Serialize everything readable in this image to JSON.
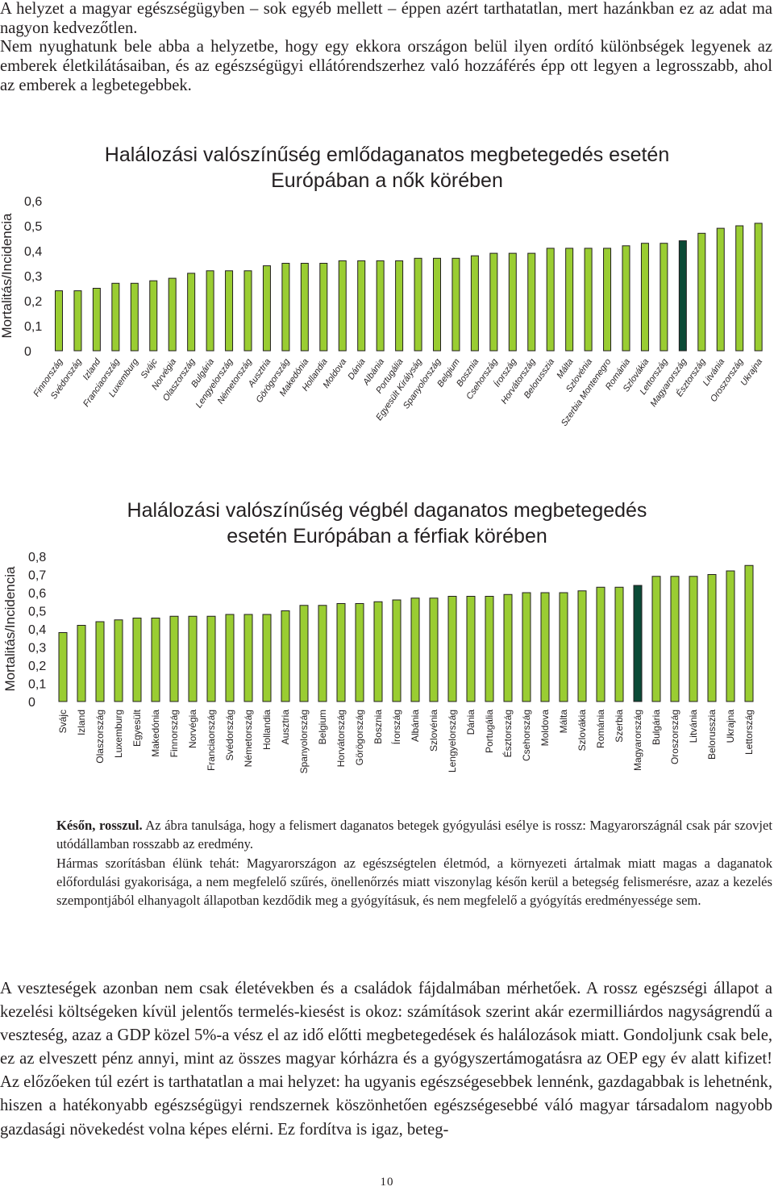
{
  "intro": {
    "p1": "A helyzet a magyar egészségügyben – sok egyéb mellett – éppen azért tarthatatlan, mert hazánkban ez az adat ma nagyon kedvezőtlen.",
    "p2": "Nem nyughatunk bele abba a helyzetbe, hogy egy ekkora országon belül ilyen ordító különbségek legyenek az emberek életkilátásaiban, és az egészségügyi ellátórendszerhez való hozzáférés épp ott legyen a legrosszabb, ahol az emberek a legbetegebbek."
  },
  "colors": {
    "bar": "#9acd32",
    "highlight": "#0b4a36",
    "stroke": "#231f20"
  },
  "chart_data": [
    {
      "type": "bar",
      "title": "Halálozási valószínűség emlődaganatos megbetegedés esetén Európában a nők körében",
      "title_lines": [
        "Halálozási valószínűség emlődaganatos megbetegedés esetén",
        "Európában a nők körében"
      ],
      "ylabel": "Mortalitás/Incidencia",
      "ylim": [
        0,
        0.6
      ],
      "yticks": [
        "0",
        "0,1",
        "0,2",
        "0,3",
        "0,4",
        "0,5",
        "0,6"
      ],
      "highlight": "Magyarország",
      "categories": [
        "Finnország",
        "Svédország",
        "Izland",
        "Franciaország",
        "Luxemburg",
        "Svájc",
        "Norvégia",
        "Olaszország",
        "Bulgária",
        "Lengyelország",
        "Németország",
        "Ausztria",
        "Görögország",
        "Makedónia",
        "Hollandia",
        "Moldova",
        "Dánia",
        "Albánia",
        "Portugália",
        "Egyesült Királyság",
        "Spanyolország",
        "Belgium",
        "Bosznia",
        "Csehország",
        "Írország",
        "Horvátország",
        "Belorusszia",
        "Málta",
        "Szlovénia",
        "Szerbia Montenegro",
        "Románia",
        "Szlovákia",
        "Lettország",
        "Magyarország",
        "Észtország",
        "Litvánia",
        "Oroszország",
        "Ukrajna"
      ],
      "values": [
        0.24,
        0.24,
        0.25,
        0.27,
        0.27,
        0.28,
        0.29,
        0.31,
        0.32,
        0.32,
        0.32,
        0.34,
        0.35,
        0.35,
        0.35,
        0.36,
        0.36,
        0.36,
        0.36,
        0.37,
        0.37,
        0.37,
        0.38,
        0.39,
        0.39,
        0.39,
        0.41,
        0.41,
        0.41,
        0.41,
        0.42,
        0.43,
        0.43,
        0.44,
        0.47,
        0.49,
        0.5,
        0.51
      ]
    },
    {
      "type": "bar",
      "title": "Halálozási valószínűség végbél daganatos megbetegedés esetén Európában a férfiak körében",
      "title_lines": [
        "Halálozási valószínűség végbél daganatos megbetegedés",
        "esetén Európában a férfiak körében"
      ],
      "ylabel": "Mortalitás/Incidencia",
      "ylim": [
        0,
        0.8
      ],
      "yticks": [
        "0",
        "0,1",
        "0,2",
        "0,3",
        "0,4",
        "0,5",
        "0,6",
        "0,7",
        "0,8"
      ],
      "highlight": "Magyarország",
      "categories": [
        "Svájc",
        "Izland",
        "Olaszország",
        "Luxemburg",
        "Egyesült",
        "Makedónia",
        "Finnország",
        "Norvégia",
        "Franciaország",
        "Svédország",
        "Németország",
        "Hollandia",
        "Ausztria",
        "Spanyolország",
        "Belgium",
        "Horvátország",
        "Görögország",
        "Bosznia",
        "Írország",
        "Albánia",
        "Szlovénia",
        "Lengyelország",
        "Dánia",
        "Portugália",
        "Észtország",
        "Csehország",
        "Moldova",
        "Málta",
        "Szlovákia",
        "Románia",
        "Szerbia",
        "Magyarország",
        "Bulgária",
        "Oroszország",
        "Litvánia",
        "Belorusszia",
        "Ukrajna",
        "Lettország"
      ],
      "values": [
        0.38,
        0.42,
        0.44,
        0.45,
        0.46,
        0.46,
        0.47,
        0.47,
        0.47,
        0.48,
        0.48,
        0.48,
        0.5,
        0.53,
        0.53,
        0.54,
        0.54,
        0.55,
        0.56,
        0.57,
        0.57,
        0.58,
        0.58,
        0.58,
        0.59,
        0.6,
        0.6,
        0.6,
        0.61,
        0.63,
        0.63,
        0.64,
        0.69,
        0.69,
        0.69,
        0.7,
        0.72,
        0.75
      ]
    }
  ],
  "caption": {
    "bold": "Későn, rosszul.",
    "text1": " Az ábra tanulsága, hogy a felismert daganatos betegek gyógyulási esélye is rossz: Magyarországnál csak pár szovjet utódállamban rosszabb az eredmény.",
    "text2": "Hármas szorításban élünk tehát: Magyarországon az egészségtelen életmód, a környezeti ártalmak miatt magas a daganatok előfordulási gyakorisága, a nem megfelelő szűrés, önellenőrzés miatt viszonylag későn kerül  a betegség felismerésre, azaz a kezelés szempontjából elhanyagolt állapotban kezdődik meg a gyógyításuk, és nem megfelelő a gyógyítás eredményessége sem."
  },
  "body2": "A veszteségek azonban nem csak életévekben és a családok fájdalmában mérhetőek. A rossz egészségi állapot a kezelési költségeken kívül jelentős termelés-kiesést is okoz: számítások szerint akár ezermilliárdos nagyságrendű a veszteség, azaz a GDP közel 5%-a vész el az idő előtti megbetegedések és halálozások miatt. Gondoljunk csak bele, ez az elveszett pénz annyi, mint az összes magyar kórházra és a gyógyszertámogatásra az OEP egy év alatt kifizet! Az előzőeken túl ezért is tarthatatlan a mai helyzet: ha ugyanis egészségesebbek lennénk, gazdagabbak is lehetnénk, hiszen a hatékonyabb egészségügyi rendszernek köszönhetően egészségesebbé váló magyar társadalom nagyobb gazdasági növekedést volna képes elérni. Ez fordítva is igaz, beteg-",
  "page_number": "10"
}
